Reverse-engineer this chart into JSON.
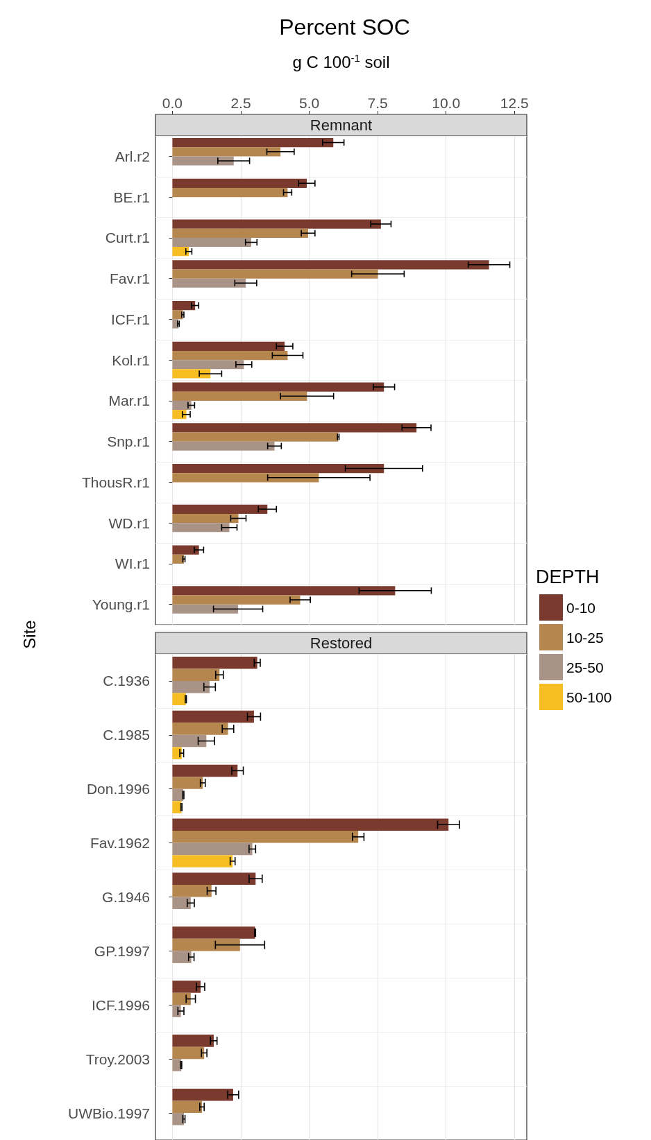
{
  "chart_data": [
    {
      "type": "bar",
      "orientation": "horizontal",
      "title": "Percent SOC",
      "xlabel": "g C 100$^{-1}$ soil",
      "ylabel": "Site",
      "subtitle": "Remnant",
      "legend_title": "DEPTH",
      "legend": "right",
      "grid": true,
      "categories": [
        "Arl.r2",
        "BE.r1",
        "Curt.r1",
        "Fav.r1",
        "ICF.r1",
        "Kol.r1",
        "Mar.r1",
        "Snp.r1",
        "ThousR.r1",
        "WD.r1",
        "WI.r1",
        "Young.r1"
      ],
      "xlim": [
        -0.62,
        12.95
      ],
      "xticks": [
        {
          "value": 0,
          "label": "0.0"
        },
        {
          "value": 2.5,
          "label": "2.5"
        },
        {
          "value": 5,
          "label": "5.0"
        },
        {
          "value": 7.5,
          "label": "7.5"
        },
        {
          "value": 10,
          "label": "10.0"
        },
        {
          "value": 12.5,
          "label": "12.5"
        }
      ],
      "series": [
        {
          "name": "0-10",
          "color": "#7a3b2e",
          "values": [
            5.88,
            4.91,
            7.62,
            11.57,
            0.83,
            4.1,
            7.73,
            8.92,
            7.73,
            3.47,
            0.97,
            8.14
          ],
          "errors": [
            0.39,
            0.3,
            0.37,
            0.76,
            0.13,
            0.3,
            0.39,
            0.53,
            1.41,
            0.33,
            0.17,
            1.32
          ]
        },
        {
          "name": "10-25",
          "color": "#b5874f",
          "values": [
            3.95,
            4.21,
            4.96,
            7.51,
            0.38,
            4.21,
            4.92,
            6.06,
            5.35,
            2.41,
            0.42,
            4.67
          ],
          "errors": [
            0.5,
            0.15,
            0.25,
            0.96,
            0.04,
            0.56,
            0.97,
            0.03,
            1.87,
            0.28,
            0.04,
            0.37
          ]
        },
        {
          "name": "25-50",
          "color": "#a99387",
          "values": [
            2.24,
            null,
            2.88,
            2.68,
            0.22,
            2.61,
            0.69,
            3.73,
            null,
            2.08,
            null,
            2.4
          ],
          "errors": [
            0.58,
            null,
            0.21,
            0.4,
            0.03,
            0.29,
            0.12,
            0.25,
            null,
            0.28,
            null,
            0.9
          ]
        },
        {
          "name": "50-100",
          "color": "#f6be23",
          "values": [
            null,
            null,
            0.6,
            null,
            null,
            1.39,
            0.51,
            null,
            null,
            null,
            null,
            null
          ],
          "errors": [
            null,
            null,
            0.11,
            null,
            null,
            0.41,
            0.14,
            null,
            null,
            null,
            null,
            null
          ]
        }
      ]
    },
    {
      "type": "bar",
      "orientation": "horizontal",
      "subtitle": "Restored",
      "grid": true,
      "tick_labels": "y",
      "categories": [
        "C.1936",
        "C.1985",
        "Don.1996",
        "Fav.1962",
        "G.1946",
        "GP.1997",
        "ICF.1996",
        "Troy.2003",
        "UWBio.1997"
      ],
      "xlim": [
        -0.62,
        12.95
      ],
      "xticks": [
        {
          "value": 0,
          "label": null
        },
        {
          "value": 2.5,
          "label": null
        },
        {
          "value": 5,
          "label": null
        },
        {
          "value": 7.5,
          "label": null
        },
        {
          "value": 10,
          "label": null
        },
        {
          "value": 12.5,
          "label": null
        }
      ],
      "series": [
        {
          "color": "#7a3b2e",
          "values": [
            3.1,
            2.98,
            2.38,
            10.09,
            3.04,
            3.02,
            1.03,
            1.51,
            2.22
          ],
          "errors": [
            0.11,
            0.24,
            0.21,
            0.4,
            0.24,
            0.02,
            0.15,
            0.12,
            0.2
          ]
        },
        {
          "color": "#b5874f",
          "values": [
            1.72,
            2.03,
            1.11,
            6.79,
            1.43,
            2.47,
            0.67,
            1.16,
            1.08
          ],
          "errors": [
            0.14,
            0.21,
            0.09,
            0.21,
            0.16,
            0.9,
            0.17,
            0.1,
            0.08
          ]
        },
        {
          "color": "#a99387",
          "values": [
            1.36,
            1.24,
            0.4,
            2.92,
            0.67,
            0.69,
            0.31,
            0.32,
            0.42
          ],
          "errors": [
            0.21,
            0.3,
            0.02,
            0.12,
            0.13,
            0.1,
            0.11,
            0.02,
            0.04
          ]
        },
        {
          "color": "#f6be23",
          "values": [
            0.49,
            0.34,
            0.33,
            2.2,
            null,
            null,
            null,
            null,
            null
          ],
          "errors": [
            0.02,
            0.07,
            0.02,
            0.09,
            null,
            null,
            null,
            null,
            null
          ]
        }
      ]
    }
  ]
}
